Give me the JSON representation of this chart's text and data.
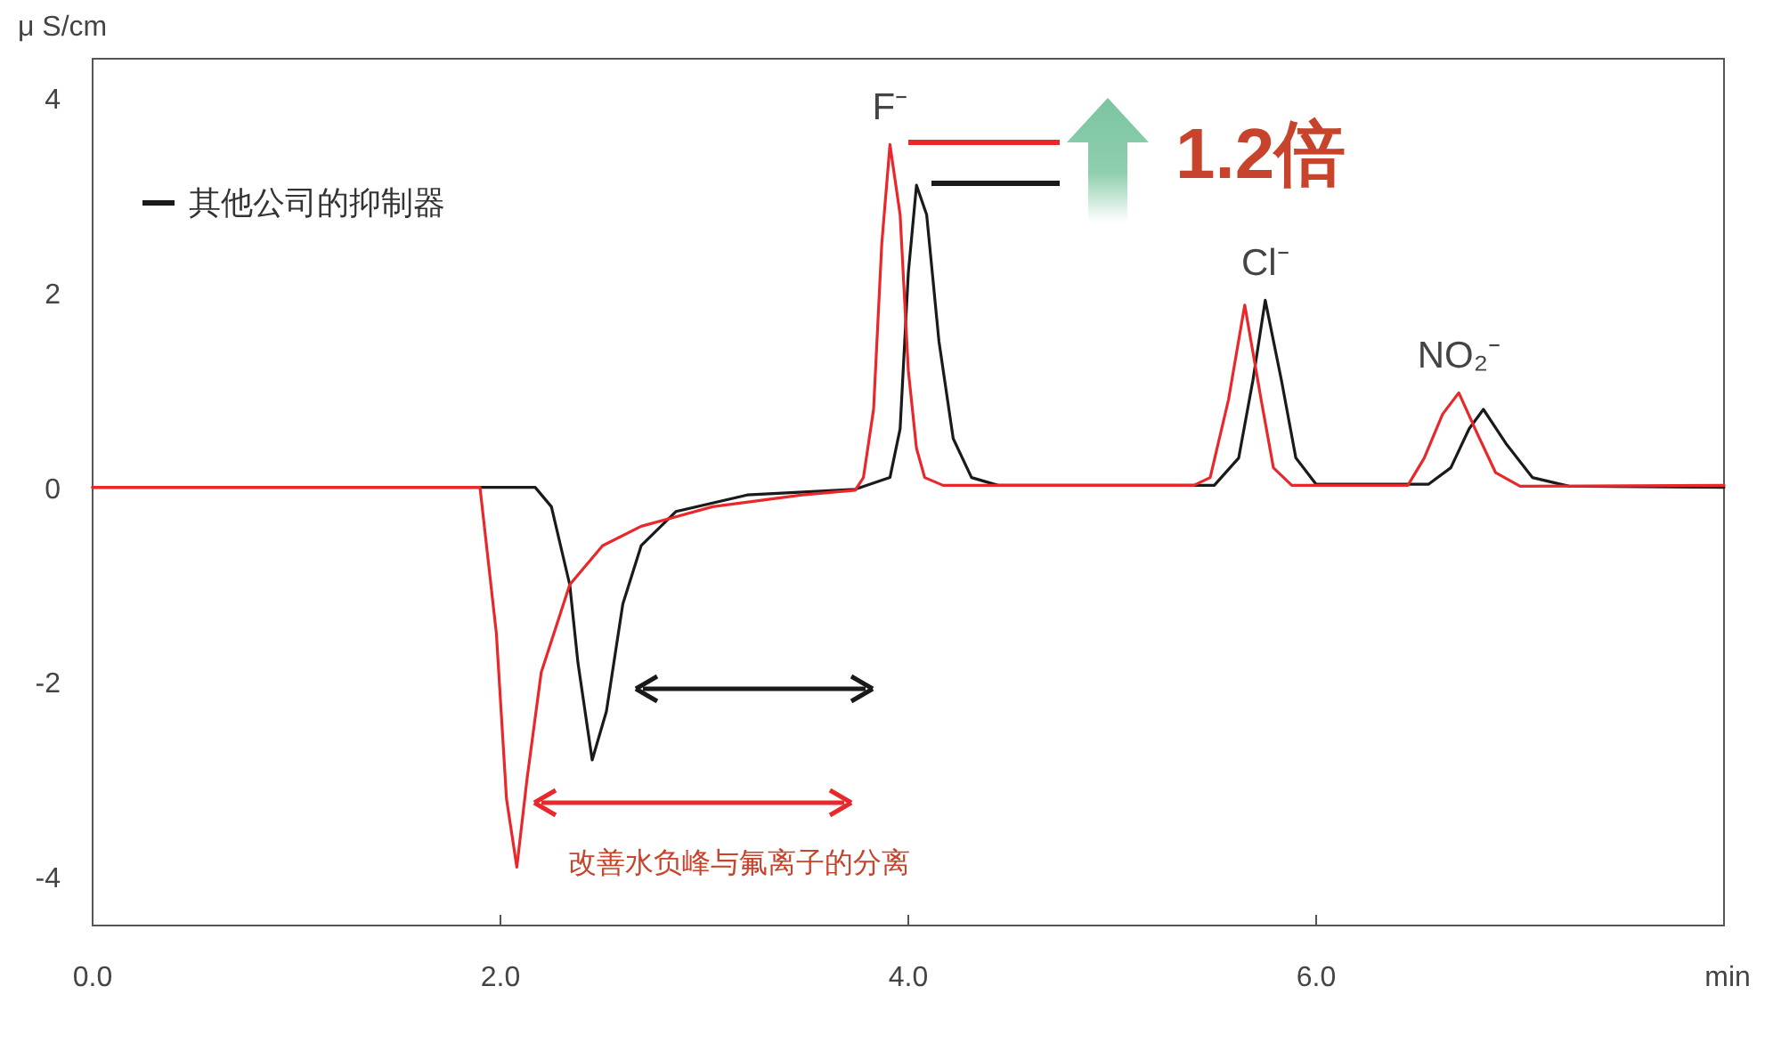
{
  "chart_data": {
    "type": "line",
    "ylabel": "μ S/cm",
    "xlabel": "min",
    "xlim": [
      0,
      8
    ],
    "ylim": [
      -4.5,
      4.4
    ],
    "xticks": [
      {
        "value": 0,
        "label": "0.0"
      },
      {
        "value": 2,
        "label": "2.0"
      },
      {
        "value": 4,
        "label": "4.0"
      },
      {
        "value": 6,
        "label": "6.0"
      }
    ],
    "yticks": [
      4,
      2,
      0,
      -2,
      -4
    ],
    "legend": "top left",
    "series": [
      {
        "color": "#e8282a",
        "x": [
          0,
          1.9,
          1.98,
          2.03,
          2.08,
          2.13,
          2.2,
          2.34,
          2.5,
          2.69,
          3.04,
          3.48,
          3.74,
          3.78,
          3.83,
          3.87,
          3.91,
          3.96,
          4.0,
          4.04,
          4.08,
          4.17,
          5.4,
          5.48,
          5.57,
          5.65,
          5.73,
          5.79,
          5.88,
          6.45,
          6.53,
          6.62,
          6.7,
          6.79,
          6.88,
          7.0,
          8.0
        ],
        "values": [
          0,
          0,
          -1.5,
          -3.2,
          -3.9,
          -3.0,
          -1.9,
          -1.0,
          -0.6,
          -0.4,
          -0.2,
          -0.08,
          -0.03,
          0.1,
          0.8,
          2.5,
          3.52,
          2.8,
          1.2,
          0.4,
          0.1,
          0.02,
          0.02,
          0.1,
          0.9,
          1.87,
          0.9,
          0.2,
          0.02,
          0.02,
          0.3,
          0.75,
          0.97,
          0.55,
          0.15,
          0.01,
          0.02
        ]
      },
      {
        "name": "其他公司的抑制器",
        "color": "#1a1a1a",
        "x": [
          0,
          2.17,
          2.25,
          2.34,
          2.38,
          2.45,
          2.52,
          2.6,
          2.69,
          2.86,
          3.21,
          3.74,
          3.91,
          3.96,
          4.0,
          4.04,
          4.09,
          4.15,
          4.22,
          4.31,
          4.44,
          5.5,
          5.62,
          5.69,
          5.75,
          5.83,
          5.9,
          6.0,
          6.55,
          6.66,
          6.75,
          6.82,
          6.93,
          7.06,
          7.24,
          8.0
        ],
        "values": [
          0,
          0,
          -0.2,
          -1.0,
          -1.8,
          -2.8,
          -2.3,
          -1.2,
          -0.6,
          -0.25,
          -0.08,
          -0.02,
          0.1,
          0.6,
          2.2,
          3.1,
          2.8,
          1.5,
          0.5,
          0.1,
          0.02,
          0.02,
          0.3,
          1.1,
          1.92,
          1.1,
          0.3,
          0.03,
          0.03,
          0.2,
          0.6,
          0.8,
          0.45,
          0.1,
          0.01,
          0
        ]
      }
    ],
    "annotations": [
      {
        "text": "F⁻",
        "x": 3.91,
        "y": 3.52
      },
      {
        "text": "Cl⁻",
        "x": 5.75,
        "y": 1.92
      },
      {
        "text": "NO₂⁻",
        "x": 6.7,
        "y": 0.97
      },
      "1.2倍",
      "改善水负峰与氟离子的分离"
    ]
  }
}
